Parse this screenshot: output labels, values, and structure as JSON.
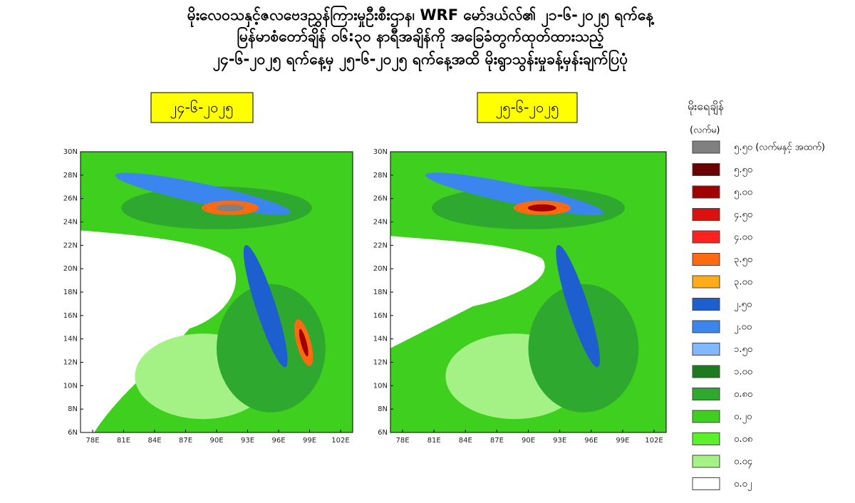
{
  "header": {
    "lines": [
      "မိုးလေဝသနှင့်ဇလဗေဒညွှန်ကြားမှုဦးစီးဌာန၊ WRF မော်ဒယ်လ်၏ ၂၁-၆-၂၀၂၅ ရက်နေ့",
      "မြန်မာစံတော်ချိန် ၀၆:၃၀ နာရီအချိန်ကို အခြေခံတွက်ထုတ်ထားသည့်",
      "၂၄-၆-၂၀၂၅ ရက်နေ့မှ ၂၅-၆-၂၀၂၅ ရက်နေ့အထိ မိုးရွာသွန်းမှုခန့်မှန်းချက်ပြပုံ"
    ]
  },
  "maps": {
    "panels": [
      {
        "label": "၂၄-၆-၂၀၂၅"
      },
      {
        "label": "၂၅-၆-၂၀၂၅"
      }
    ],
    "x_ticks": [
      "78E",
      "81E",
      "84E",
      "87E",
      "90E",
      "93E",
      "96E",
      "99E",
      "102E"
    ],
    "y_ticks": [
      "30N",
      "28N",
      "26N",
      "24N",
      "22N",
      "20N",
      "18N",
      "16N",
      "14N",
      "12N",
      "10N",
      "8N",
      "6N"
    ]
  },
  "legend": {
    "title": "မိုးရေချိန်",
    "unit": "(လက်မ)",
    "entries": [
      {
        "label": "၅.၅၀ (လက်မနှင့် အထက်)",
        "color": "#808080"
      },
      {
        "label": "၅.၅၀",
        "color": "#6b0000"
      },
      {
        "label": "၅.၀၀",
        "color": "#a00000"
      },
      {
        "label": "၄.၅၀",
        "color": "#dd1010"
      },
      {
        "label": "၄.၀၀",
        "color": "#ff2020"
      },
      {
        "label": "၃.၅၀",
        "color": "#ff6a10"
      },
      {
        "label": "၃.၀၀",
        "color": "#ffab1a"
      },
      {
        "label": "၂.၅၀",
        "color": "#1e5fd0"
      },
      {
        "label": "၂.၀၀",
        "color": "#3a86ee"
      },
      {
        "label": "၁.၅၀",
        "color": "#82b8ff"
      },
      {
        "label": "၁.၀၀",
        "color": "#1e7a1e"
      },
      {
        "label": "၀.၈၀",
        "color": "#2ea82e"
      },
      {
        "label": "၀.၂၀",
        "color": "#3fcf1f"
      },
      {
        "label": "၀.၀၈",
        "color": "#5cf02a"
      },
      {
        "label": "၀.၀၄",
        "color": "#a4f286"
      },
      {
        "label": "၀.၀၂",
        "color": "#ffffff"
      }
    ]
  }
}
